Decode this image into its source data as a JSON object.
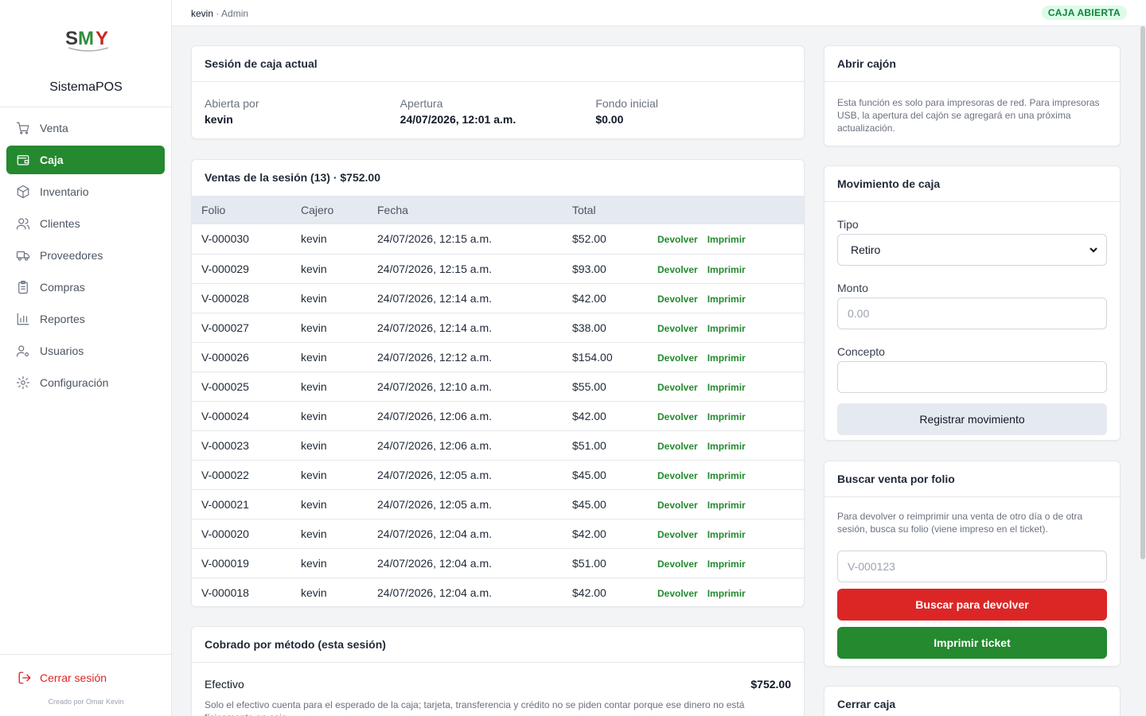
{
  "app": {
    "name": "SistemaPOS",
    "credit": "Creado por Omar Kevin"
  },
  "topbar": {
    "user": "kevin",
    "separator": " · ",
    "role": "Admin",
    "status": "CAJA ABIERTA"
  },
  "colors": {
    "primary": "#24892f",
    "danger": "#dc2626",
    "status_bg": "#dcfce7"
  },
  "sidebar": {
    "items": [
      {
        "label": "Venta",
        "icon": "cart-icon"
      },
      {
        "label": "Caja",
        "icon": "wallet-icon",
        "active": true
      },
      {
        "label": "Inventario",
        "icon": "box-icon"
      },
      {
        "label": "Clientes",
        "icon": "users-icon"
      },
      {
        "label": "Proveedores",
        "icon": "truck-icon"
      },
      {
        "label": "Compras",
        "icon": "clipboard-icon"
      },
      {
        "label": "Reportes",
        "icon": "bar-chart-icon"
      },
      {
        "label": "Usuarios",
        "icon": "user-cog-icon"
      },
      {
        "label": "Configuración",
        "icon": "gear-icon"
      }
    ],
    "logout": "Cerrar sesión"
  },
  "session": {
    "title": "Sesión de caja actual",
    "opened_by_label": "Abierta por",
    "opened_by": "kevin",
    "opening_label": "Apertura",
    "opening": "24/07/2026, 12:01 a.m.",
    "fund_label": "Fondo inicial",
    "fund": "$0.00"
  },
  "sales": {
    "title": "Ventas de la sesión (13) · $752.00",
    "columns": [
      "Folio",
      "Cajero",
      "Fecha",
      "Total",
      ""
    ],
    "return_label": "Devolver",
    "print_label": "Imprimir",
    "rows": [
      {
        "folio": "V-000030",
        "cashier": "kevin",
        "date": "24/07/2026, 12:15 a.m.",
        "total": "$52.00"
      },
      {
        "folio": "V-000029",
        "cashier": "kevin",
        "date": "24/07/2026, 12:15 a.m.",
        "total": "$93.00"
      },
      {
        "folio": "V-000028",
        "cashier": "kevin",
        "date": "24/07/2026, 12:14 a.m.",
        "total": "$42.00"
      },
      {
        "folio": "V-000027",
        "cashier": "kevin",
        "date": "24/07/2026, 12:14 a.m.",
        "total": "$38.00"
      },
      {
        "folio": "V-000026",
        "cashier": "kevin",
        "date": "24/07/2026, 12:12 a.m.",
        "total": "$154.00"
      },
      {
        "folio": "V-000025",
        "cashier": "kevin",
        "date": "24/07/2026, 12:10 a.m.",
        "total": "$55.00"
      },
      {
        "folio": "V-000024",
        "cashier": "kevin",
        "date": "24/07/2026, 12:06 a.m.",
        "total": "$42.00"
      },
      {
        "folio": "V-000023",
        "cashier": "kevin",
        "date": "24/07/2026, 12:06 a.m.",
        "total": "$51.00"
      },
      {
        "folio": "V-000022",
        "cashier": "kevin",
        "date": "24/07/2026, 12:05 a.m.",
        "total": "$45.00"
      },
      {
        "folio": "V-000021",
        "cashier": "kevin",
        "date": "24/07/2026, 12:05 a.m.",
        "total": "$45.00"
      },
      {
        "folio": "V-000020",
        "cashier": "kevin",
        "date": "24/07/2026, 12:04 a.m.",
        "total": "$42.00"
      },
      {
        "folio": "V-000019",
        "cashier": "kevin",
        "date": "24/07/2026, 12:04 a.m.",
        "total": "$51.00"
      },
      {
        "folio": "V-000018",
        "cashier": "kevin",
        "date": "24/07/2026, 12:04 a.m.",
        "total": "$42.00"
      }
    ]
  },
  "methods": {
    "title": "Cobrado por método (esta sesión)",
    "cash_label": "Efectivo",
    "cash_value": "$752.00",
    "note": "Solo el efectivo cuenta para el esperado de la caja; tarjeta, transferencia y crédito no se piden contar porque ese dinero no está físicamente en caja."
  },
  "drawer": {
    "title": "Abrir cajón",
    "note": "Esta función es solo para impresoras de red. Para impresoras USB, la apertura del cajón se agregará en una próxima actualización."
  },
  "movement": {
    "title": "Movimiento de caja",
    "type_label": "Tipo",
    "type_value": "Retiro",
    "amount_label": "Monto",
    "amount_placeholder": "0.00",
    "concept_label": "Concepto",
    "concept_value": "",
    "submit": "Registrar movimiento"
  },
  "search": {
    "title": "Buscar venta por folio",
    "note": "Para devolver o reimprimir una venta de otro día o de otra sesión, busca su folio (viene impreso en el ticket).",
    "placeholder": "V-000123",
    "return_button": "Buscar para devolver",
    "print_button": "Imprimir ticket"
  },
  "close": {
    "title": "Cerrar caja"
  }
}
